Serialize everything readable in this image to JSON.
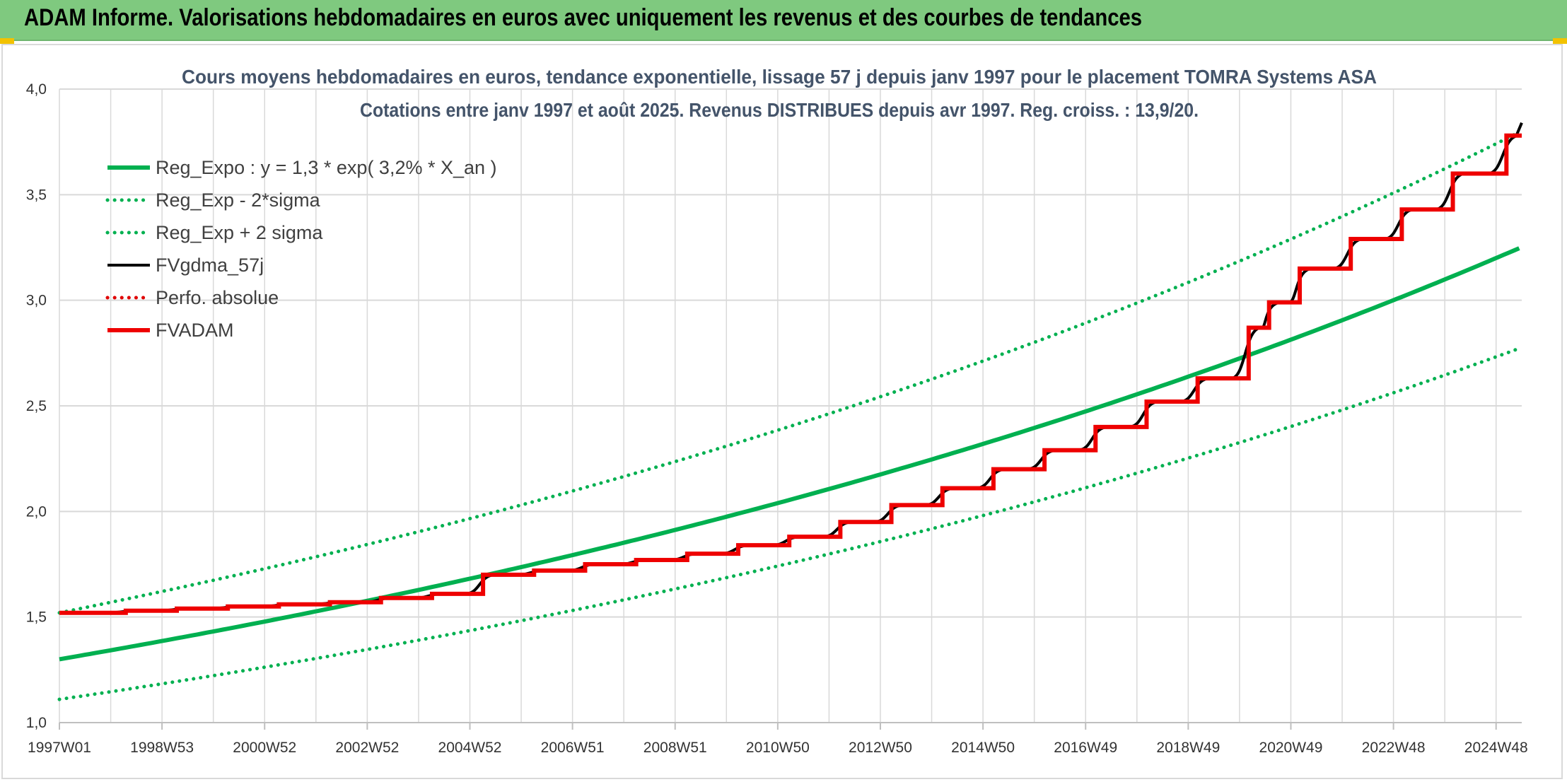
{
  "header": {
    "title": "ADAM Informe. Valorisations hebdomadaires en euros avec uniquement les revenus et des courbes de tendances"
  },
  "colors": {
    "header_bg": "#7fc97f",
    "reg_expo": "#00b050",
    "fvgdma": "#000000",
    "perfo": "#e00000",
    "fvadam": "#ee0000",
    "grid": "#d9d9d9"
  },
  "chart_data": {
    "type": "line",
    "title_line1": "Cours moyens hebdomadaires en euros, tendance exponentielle, lissage 57 j depuis janv 1997 pour le placement TOMRA Systems ASA",
    "title_line2": "Cotations entre janv 1997 et août 2025. Revenus DISTRIBUES depuis avr 1997. Reg. croiss. : 13,9/20.",
    "x_tick_labels": [
      "1997W01",
      "1998W53",
      "2000W52",
      "2002W52",
      "2004W52",
      "2006W51",
      "2008W51",
      "2010W50",
      "2012W50",
      "2014W50",
      "2016W49",
      "2018W49",
      "2020W49",
      "2022W48",
      "2024W48"
    ],
    "x_range_years": [
      1997.0,
      2025.65
    ],
    "ylim": [
      1.0,
      4.0
    ],
    "y_ticks": [
      "1,0",
      "1,5",
      "2,0",
      "2,5",
      "3,0",
      "3,5",
      "4,0"
    ],
    "grid": true,
    "legend_position": "top-left",
    "series": [
      {
        "name": "Reg_Expo : y = 1,3 * exp( 3,2% *  X_an )",
        "style": "solid-thick",
        "color": "#00b050",
        "start": 1.3,
        "rate": 0.032
      },
      {
        "name": "Reg_Exp - 2*sigma",
        "style": "dotted",
        "color": "#00b050",
        "start": 1.11,
        "rate": 0.032
      },
      {
        "name": "Reg_Exp + 2 sigma",
        "style": "dotted",
        "color": "#00b050",
        "start": 1.52,
        "rate": 0.032
      },
      {
        "name": "FVgdma_57j",
        "style": "solid",
        "color": "#000000"
      },
      {
        "name": "Perfo. absolue",
        "style": "dotted",
        "color": "#e00000"
      },
      {
        "name": "FVADAM",
        "style": "step-thick",
        "color": "#ee0000",
        "steps": [
          [
            1997.0,
            1.52
          ],
          [
            1998.3,
            1.53
          ],
          [
            1999.3,
            1.54
          ],
          [
            2000.3,
            1.55
          ],
          [
            2001.3,
            1.56
          ],
          [
            2002.3,
            1.57
          ],
          [
            2003.3,
            1.59
          ],
          [
            2004.3,
            1.61
          ],
          [
            2005.3,
            1.7
          ],
          [
            2006.3,
            1.72
          ],
          [
            2007.3,
            1.75
          ],
          [
            2008.3,
            1.77
          ],
          [
            2009.3,
            1.8
          ],
          [
            2010.3,
            1.84
          ],
          [
            2011.3,
            1.88
          ],
          [
            2012.3,
            1.95
          ],
          [
            2013.3,
            2.03
          ],
          [
            2014.3,
            2.11
          ],
          [
            2015.3,
            2.2
          ],
          [
            2016.3,
            2.29
          ],
          [
            2017.3,
            2.4
          ],
          [
            2018.3,
            2.52
          ],
          [
            2019.3,
            2.63
          ],
          [
            2020.3,
            2.87
          ],
          [
            2020.7,
            2.99
          ],
          [
            2021.3,
            3.15
          ],
          [
            2022.3,
            3.29
          ],
          [
            2023.3,
            3.43
          ],
          [
            2024.3,
            3.6
          ],
          [
            2025.35,
            3.78
          ]
        ],
        "end_x": 2025.65
      }
    ]
  }
}
